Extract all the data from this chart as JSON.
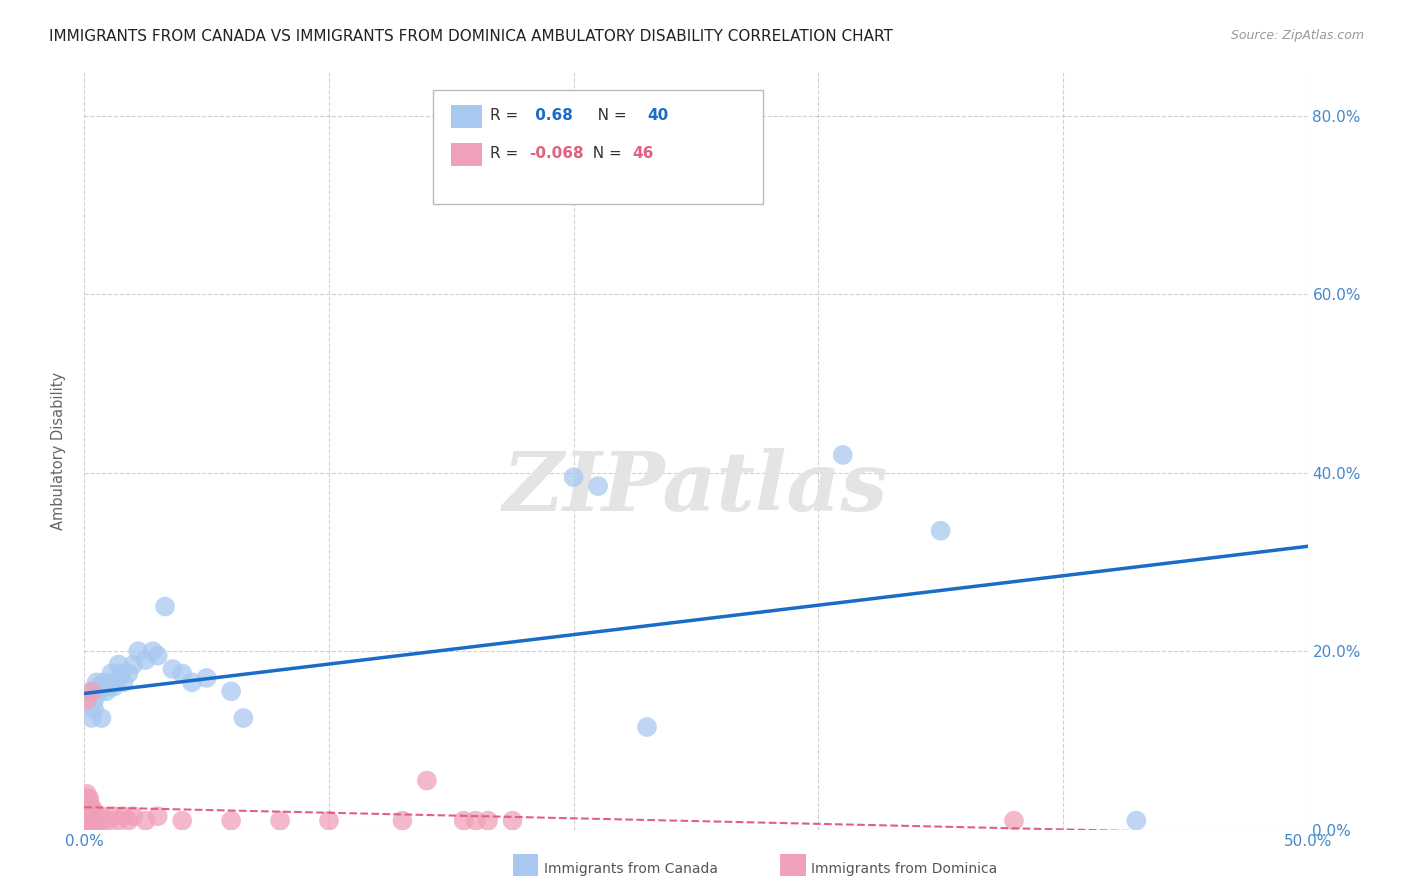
{
  "title": "IMMIGRANTS FROM CANADA VS IMMIGRANTS FROM DOMINICA AMBULATORY DISABILITY CORRELATION CHART",
  "source": "Source: ZipAtlas.com",
  "ylabel": "Ambulatory Disability",
  "xlim": [
    0.0,
    0.5
  ],
  "ylim": [
    0.0,
    0.85
  ],
  "xticks": [
    0.0,
    0.1,
    0.2,
    0.3,
    0.4,
    0.5
  ],
  "yticks": [
    0.0,
    0.2,
    0.4,
    0.6,
    0.8
  ],
  "canada_x": [
    0.001,
    0.002,
    0.002,
    0.003,
    0.003,
    0.004,
    0.004,
    0.005,
    0.005,
    0.006,
    0.006,
    0.007,
    0.008,
    0.009,
    0.01,
    0.011,
    0.012,
    0.013,
    0.014,
    0.015,
    0.016,
    0.018,
    0.02,
    0.022,
    0.025,
    0.028,
    0.03,
    0.033,
    0.036,
    0.04,
    0.044,
    0.05,
    0.06,
    0.065,
    0.2,
    0.21,
    0.23,
    0.31,
    0.35,
    0.43
  ],
  "canada_y": [
    0.005,
    0.01,
    0.015,
    0.125,
    0.155,
    0.145,
    0.135,
    0.165,
    0.155,
    0.16,
    0.155,
    0.125,
    0.165,
    0.155,
    0.16,
    0.175,
    0.16,
    0.165,
    0.185,
    0.175,
    0.165,
    0.175,
    0.185,
    0.2,
    0.19,
    0.2,
    0.195,
    0.25,
    0.18,
    0.175,
    0.165,
    0.17,
    0.155,
    0.125,
    0.395,
    0.385,
    0.115,
    0.42,
    0.335,
    0.01
  ],
  "dominica_x": [
    0.001,
    0.001,
    0.001,
    0.001,
    0.001,
    0.001,
    0.001,
    0.001,
    0.002,
    0.002,
    0.002,
    0.002,
    0.002,
    0.002,
    0.003,
    0.003,
    0.003,
    0.003,
    0.003,
    0.004,
    0.004,
    0.004,
    0.005,
    0.005,
    0.006,
    0.007,
    0.008,
    0.01,
    0.012,
    0.014,
    0.016,
    0.018,
    0.02,
    0.025,
    0.03,
    0.04,
    0.06,
    0.08,
    0.1,
    0.13,
    0.14,
    0.155,
    0.16,
    0.165,
    0.175,
    0.38
  ],
  "dominica_y": [
    0.01,
    0.015,
    0.02,
    0.025,
    0.03,
    0.035,
    0.04,
    0.145,
    0.01,
    0.015,
    0.02,
    0.025,
    0.03,
    0.035,
    0.01,
    0.015,
    0.02,
    0.025,
    0.155,
    0.01,
    0.015,
    0.02,
    0.01,
    0.015,
    0.01,
    0.015,
    0.01,
    0.01,
    0.015,
    0.01,
    0.015,
    0.01,
    0.015,
    0.01,
    0.015,
    0.01,
    0.01,
    0.01,
    0.01,
    0.01,
    0.055,
    0.01,
    0.01,
    0.01,
    0.01,
    0.01
  ],
  "canada_R": 0.68,
  "canada_N": 40,
  "dominica_R": -0.068,
  "dominica_N": 46,
  "canada_color": "#a8c8f0",
  "dominica_color": "#f0a0b8",
  "canada_line_color": "#1a6cc8",
  "dominica_line_color": "#e06080",
  "bg_color": "#ffffff",
  "grid_color": "#cccccc",
  "title_color": "#222222",
  "title_fontsize": 11,
  "axis_label_color": "#666666",
  "tick_label_color": "#4488cc",
  "legend_label1": "Immigrants from Canada",
  "legend_label2": "Immigrants from Dominica"
}
